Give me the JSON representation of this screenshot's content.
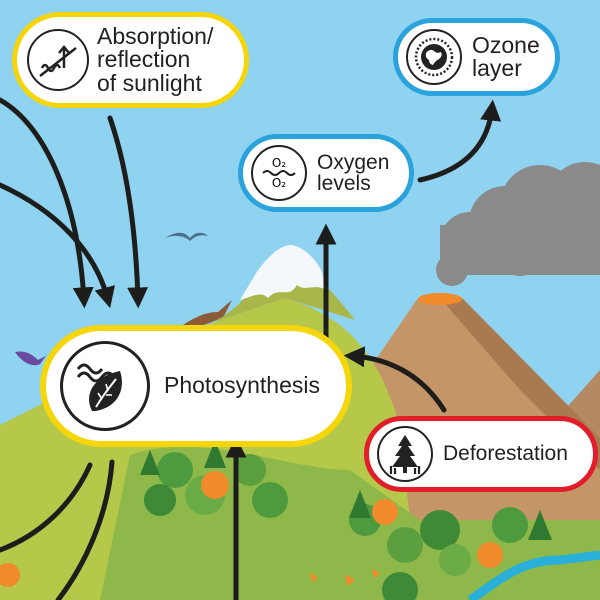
{
  "nodes": {
    "absorption": {
      "lines": [
        "Absorption/",
        "reflection",
        "of sunlight"
      ],
      "border": "#f5d60a",
      "icon": "sunlight-reflection-icon"
    },
    "ozone": {
      "lines": [
        "Ozone",
        "layer"
      ],
      "border": "#2aa3dc",
      "icon": "globe-icon"
    },
    "oxygen": {
      "lines": [
        "Oxygen",
        "levels"
      ],
      "border": "#2aa3dc",
      "icon": "oxygen-molecule-icon",
      "icon_text": [
        "O₂",
        "O₂"
      ]
    },
    "photosynthesis": {
      "lines": [
        "Photosynthesis"
      ],
      "border": "#f5d60a",
      "icon": "leaf-icon"
    },
    "deforestation": {
      "lines": [
        "Deforestation"
      ],
      "border": "#e11d2a",
      "icon": "tree-icon"
    }
  },
  "colors": {
    "sky": "#8fd3f0",
    "grass": "#b5c84a",
    "mountain": "#c49566",
    "snow": "#f4f7fb",
    "smoke": "#8a8a8a",
    "river": "#2ab0d8",
    "arrow": "#1d1d1b"
  }
}
